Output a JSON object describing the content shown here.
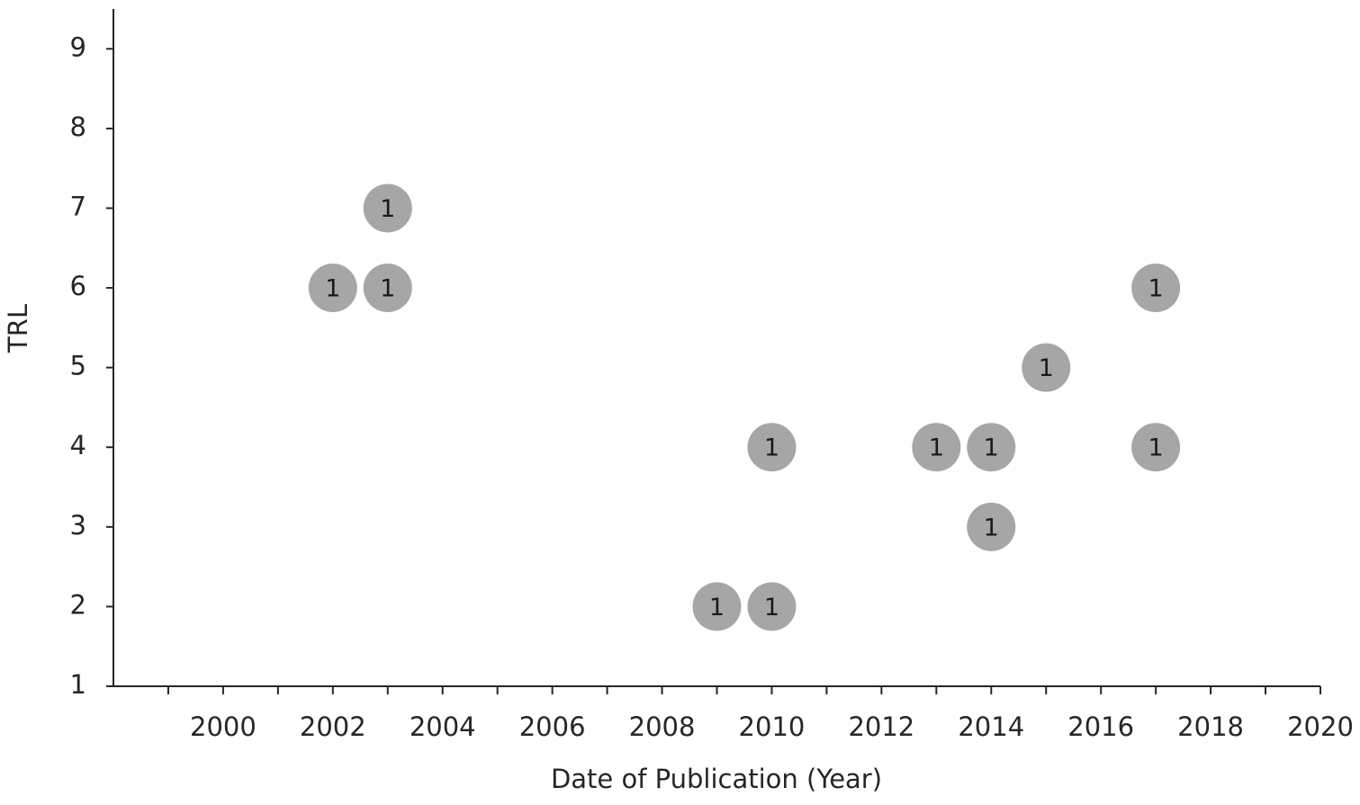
{
  "chart_data": {
    "type": "bubble",
    "x_label": "Date of Publication (Year)",
    "y_label": "TRL",
    "x": [
      2002,
      2003,
      2003,
      2009,
      2010,
      2010,
      2013,
      2014,
      2014,
      2015,
      2017,
      2017
    ],
    "y": [
      6,
      6,
      7,
      2,
      2,
      4,
      4,
      4,
      3,
      5,
      6,
      4
    ],
    "sizes": [
      1,
      1,
      1,
      1,
      1,
      1,
      1,
      1,
      1,
      1,
      1,
      1
    ],
    "color": "#a6a6a6",
    "xlim": [
      1998,
      2020
    ],
    "xticks": [
      2000,
      2002,
      2004,
      2006,
      2008,
      2010,
      2012,
      2014,
      2016,
      2018,
      2020
    ],
    "xminorticks": [
      1999,
      2001,
      2003,
      2005,
      2007,
      2009,
      2011,
      2013,
      2015,
      2017,
      2019
    ],
    "ylim": [
      1,
      9.5
    ],
    "yticks": [
      1,
      2,
      3,
      4,
      5,
      6,
      7,
      8,
      9
    ],
    "grid": false
  }
}
